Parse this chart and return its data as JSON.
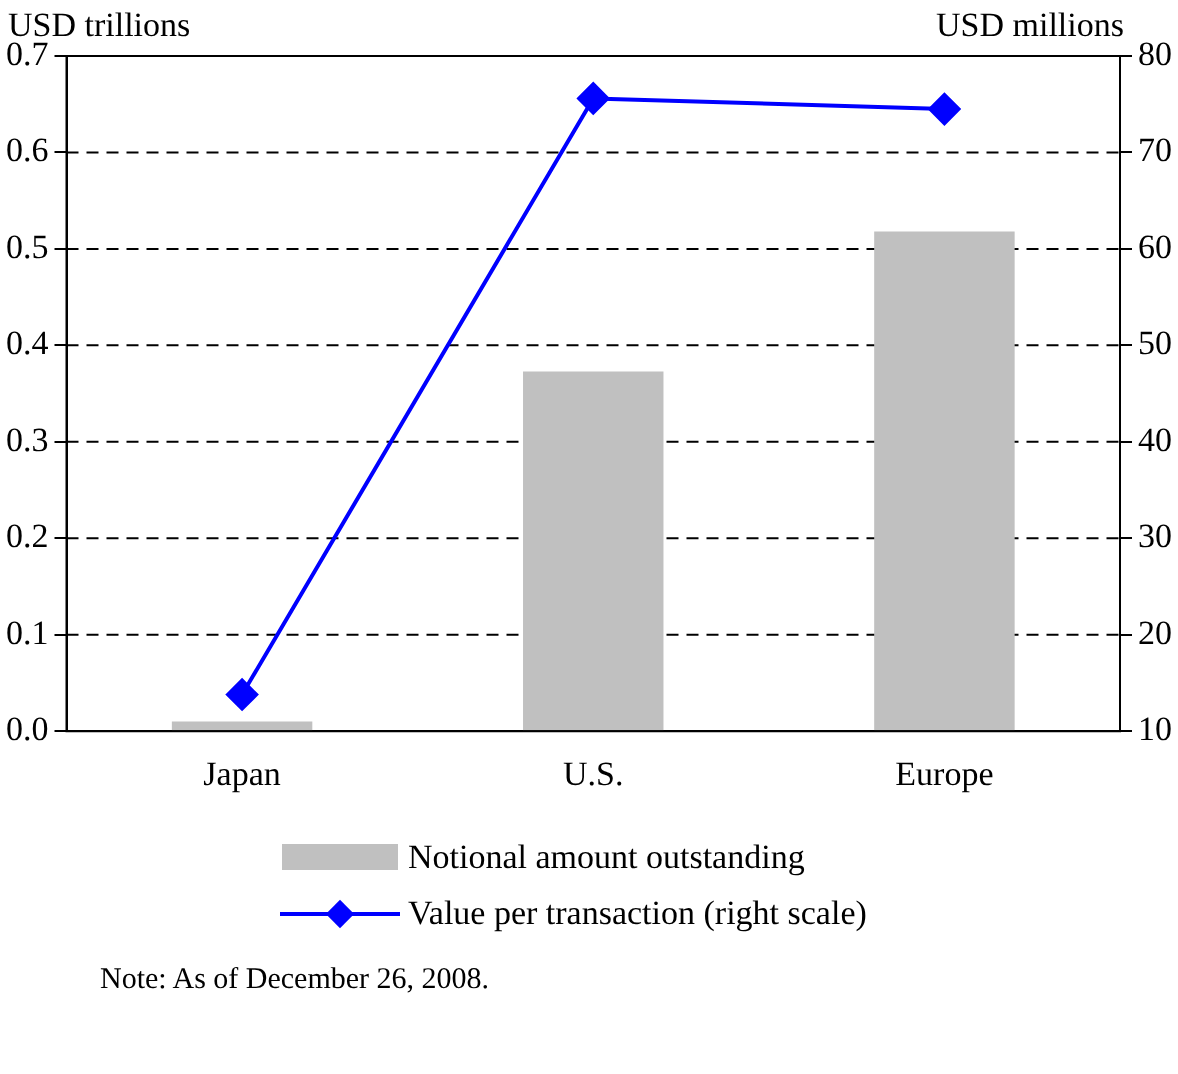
{
  "chart_data": {
    "type": "bar",
    "ylabel": "USD trillions",
    "y2label": "USD millions",
    "categories": [
      "Japan",
      "U.S.",
      "Europe"
    ],
    "series": [
      {
        "name": "Notional amount outstanding",
        "color": "#c0c0c0",
        "values": [
          0.01,
          0.373,
          0.518
        ]
      },
      {
        "name": "Value per transaction (right scale)",
        "type": "line",
        "axis": "y2",
        "color": "#0000ff",
        "marker": "diamond",
        "values": [
          13.8,
          75.6,
          74.5
        ]
      }
    ],
    "ylim": [
      0,
      0.7
    ],
    "yticks": [
      {
        "value": 0,
        "label": "0.0"
      },
      0.1,
      0.2,
      0.3,
      0.4,
      0.5,
      0.6,
      0.7
    ],
    "y2lim": [
      10,
      80
    ],
    "y2ticks": [
      10,
      20,
      30,
      40,
      50,
      60,
      70,
      80
    ],
    "grid": "y",
    "legend": "bottom",
    "annotations": [
      "Note: As of December 26, 2008."
    ]
  }
}
